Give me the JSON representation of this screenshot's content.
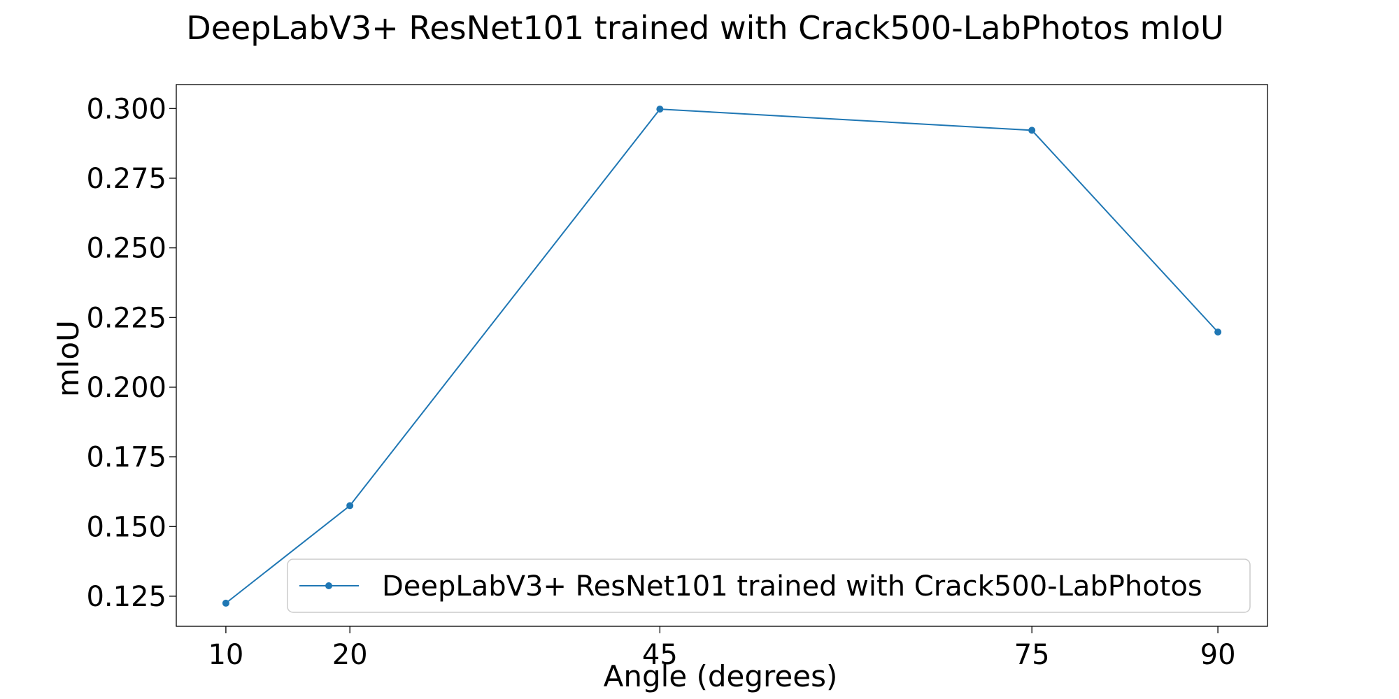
{
  "chart_data": {
    "type": "line",
    "title": "DeepLabV3+ ResNet101 trained with Crack500-LabPhotos mIoU",
    "xlabel": "Angle (degrees)",
    "ylabel": "mIoU",
    "x": [
      10,
      20,
      45,
      75,
      90
    ],
    "x_tick_labels": [
      "10",
      "20",
      "45",
      "75",
      "90"
    ],
    "y_ticks": [
      0.125,
      0.15,
      0.175,
      0.2,
      0.225,
      0.25,
      0.275,
      0.3
    ],
    "y_tick_labels": [
      "0.125",
      "0.150",
      "0.175",
      "0.200",
      "0.225",
      "0.250",
      "0.275",
      "0.300"
    ],
    "xlim": [
      6.0,
      94.0
    ],
    "ylim": [
      0.1142,
      0.3086
    ],
    "grid": false,
    "legend_position": "lower-right",
    "series": [
      {
        "name": "DeepLabV3+ ResNet101 trained with Crack500-LabPhotos",
        "color": "#1f77b4",
        "marker": "circle",
        "values": [
          0.1225,
          0.1575,
          0.2998,
          0.2922,
          0.2198
        ]
      }
    ]
  }
}
